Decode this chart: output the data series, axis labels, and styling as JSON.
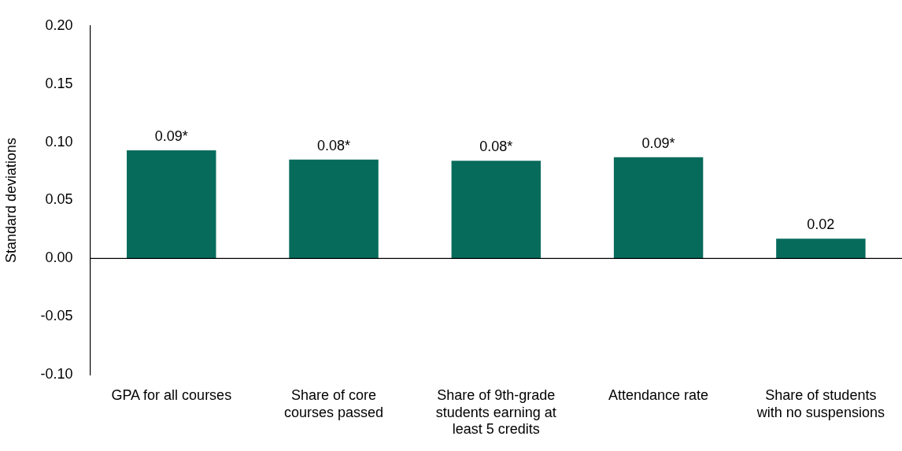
{
  "chart_data": {
    "type": "bar",
    "ylabel": "Standard deviations",
    "categories": [
      "GPA for all courses",
      "Share of core courses passed",
      "Share of 9th-grade students earning at least 5 credits",
      "Attendance rate",
      "Share of students with no suspensions"
    ],
    "values": [
      0.093,
      0.085,
      0.084,
      0.087,
      0.017
    ],
    "value_labels": [
      "0.09*",
      "0.08*",
      "0.08*",
      "0.09*",
      "0.02"
    ],
    "color": "#076b5b",
    "ylim": [
      -0.1,
      0.2
    ],
    "yticks": [
      {
        "value": -0.1,
        "label": "-0.10"
      },
      {
        "value": -0.05,
        "label": "-0.05"
      },
      {
        "value": 0,
        "label": "0.00"
      },
      {
        "value": 0.05,
        "label": "0.05"
      },
      {
        "value": 0.1,
        "label": "0.10"
      },
      {
        "value": 0.15,
        "label": "0.15"
      },
      {
        "value": 0.2,
        "label": "0.20"
      }
    ],
    "ref_lines": [
      {
        "axis": "y",
        "value": 0,
        "color": "#000000"
      }
    ],
    "grid": false,
    "legend": false
  }
}
